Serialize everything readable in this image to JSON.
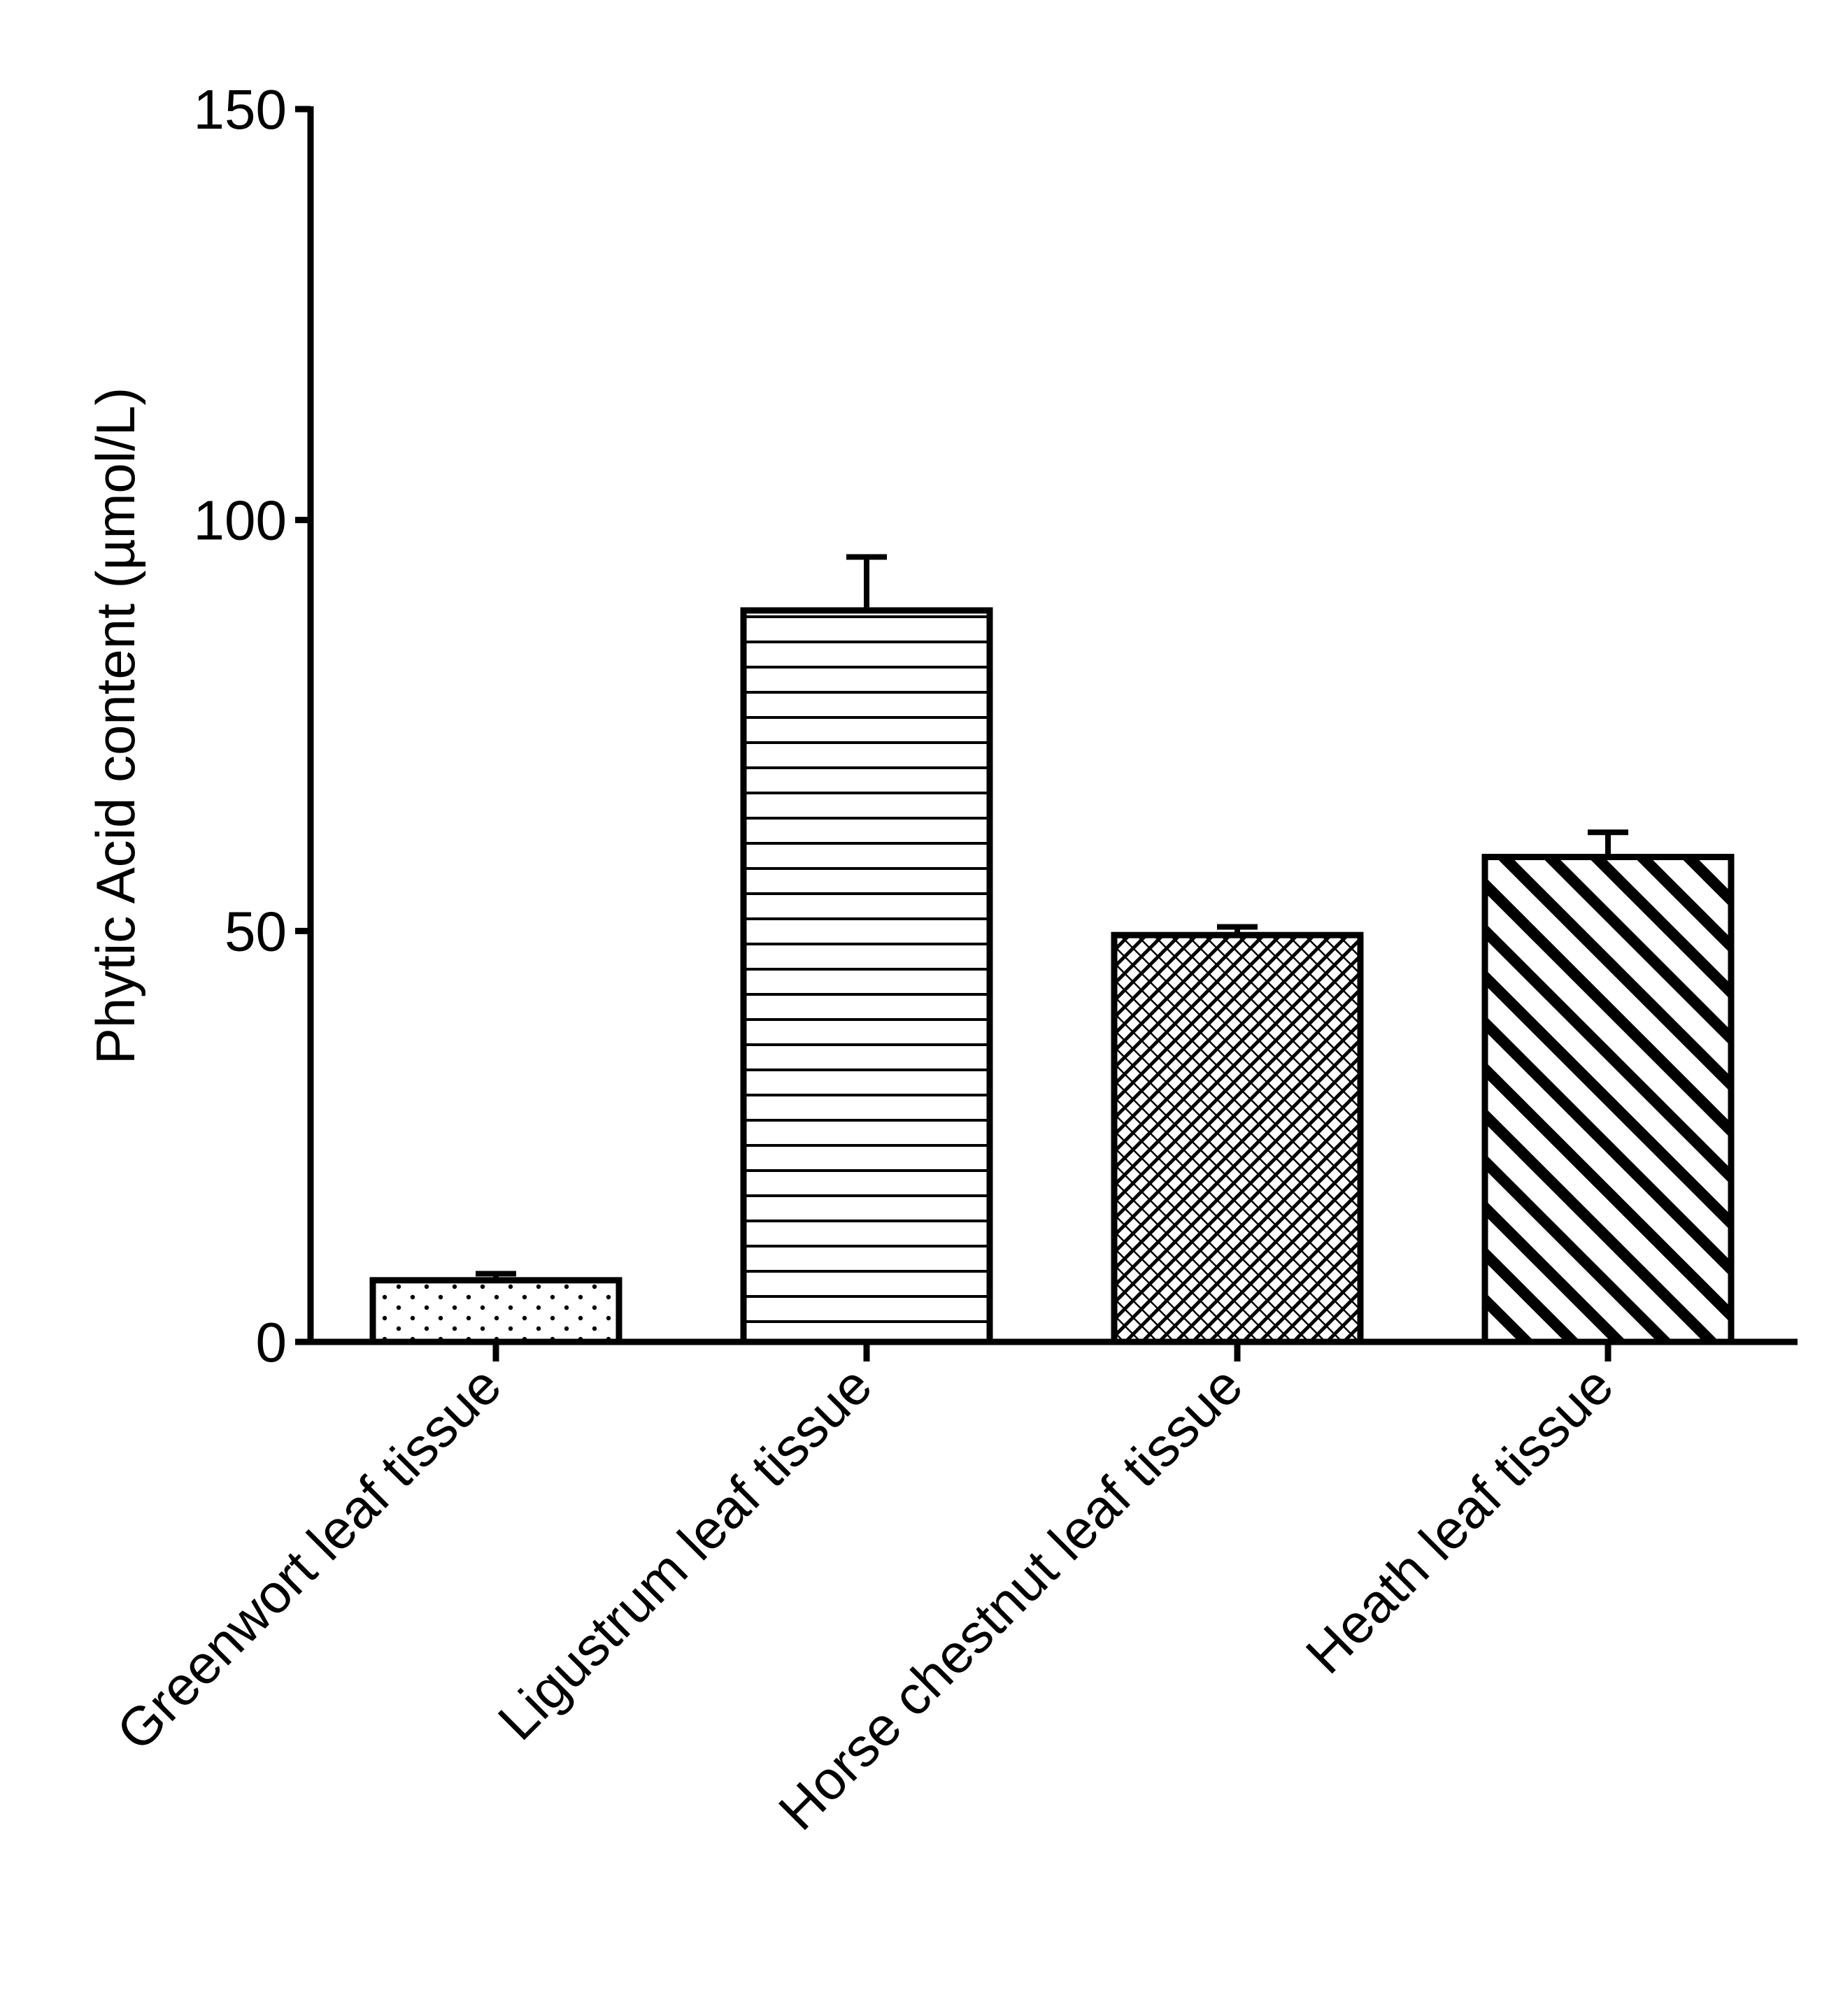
{
  "chart_data": {
    "type": "bar",
    "title": "",
    "xlabel": "",
    "ylabel": "Phytic Acid content (µmol/L)",
    "ylim": [
      0,
      150
    ],
    "yticks": [
      0,
      50,
      100,
      150
    ],
    "grid": false,
    "legend": "none",
    "categories": [
      "Greenwort leaf tissue",
      "Ligustrum leaf tissue",
      "Horse chestnut leaf tissue",
      "Heath leaf tissue"
    ],
    "values": [
      7.5,
      89,
      49.5,
      59
    ],
    "errors": [
      0.8,
      6.5,
      1.0,
      3.0
    ],
    "fill_patterns": [
      "dots",
      "horizontal-lines",
      "crosshatch",
      "diagonal-stripes"
    ],
    "colors": {
      "ink": "#000000",
      "background": "#ffffff"
    }
  }
}
